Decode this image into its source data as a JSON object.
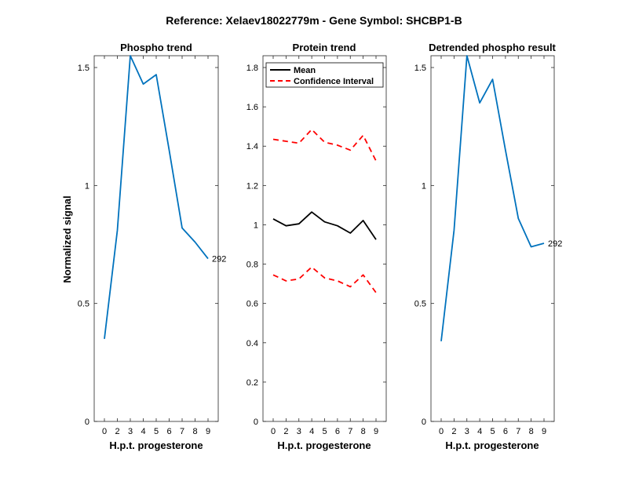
{
  "figure": {
    "title": "Reference:  Xelaev18022779m - Gene Symbol:  SHCBP1-B"
  },
  "chart_data": [
    {
      "type": "line",
      "title": "Phospho trend",
      "xlabel": "H.p.t. progesterone",
      "ylabel": "Normalized signal",
      "x_ticks": [
        "0",
        "2",
        "3",
        "4",
        "5",
        "6",
        "7",
        "8",
        "9"
      ],
      "y_ticks": [
        "0",
        "0.5",
        "1",
        "1.5"
      ],
      "ylim": [
        0,
        1.55
      ],
      "series": [
        {
          "color": "#0072BD",
          "dash": "solid",
          "values": [
            0.35,
            0.81,
            1.55,
            1.43,
            1.47,
            1.15,
            0.82,
            0.76,
            0.69
          ]
        }
      ],
      "annotation": {
        "text": "292",
        "at_index": 8
      }
    },
    {
      "type": "line",
      "title": "Protein trend",
      "xlabel": "H.p.t. progesterone",
      "ylabel": "",
      "x_ticks": [
        "0",
        "2",
        "3",
        "4",
        "5",
        "6",
        "7",
        "8",
        "9"
      ],
      "y_ticks": [
        "0",
        "0.2",
        "0.4",
        "0.6",
        "0.8",
        "1",
        "1.2",
        "1.4",
        "1.6",
        "1.8"
      ],
      "ylim": [
        0,
        1.86
      ],
      "series": [
        {
          "name": "Mean",
          "color": "#000000",
          "dash": "solid",
          "values": [
            1.03,
            0.995,
            1.005,
            1.065,
            1.015,
            0.995,
            0.958,
            1.022,
            0.925
          ]
        },
        {
          "name": "Confidence Interval",
          "color": "#FF0000",
          "dash": "dashed",
          "values": [
            1.435,
            1.425,
            1.415,
            1.485,
            1.42,
            1.405,
            1.38,
            1.455,
            1.325
          ]
        },
        {
          "color": "#FF0000",
          "dash": "dashed",
          "values": [
            0.745,
            0.715,
            0.725,
            0.785,
            0.73,
            0.715,
            0.685,
            0.745,
            0.655
          ]
        }
      ],
      "legend": {
        "placement": "top-right",
        "entries": [
          {
            "label": "Mean",
            "color": "#000000",
            "dash": "solid"
          },
          {
            "label": "Confidence Interval",
            "color": "#FF0000",
            "dash": "dashed"
          }
        ]
      }
    },
    {
      "type": "line",
      "title": "Detrended phospho result",
      "xlabel": "H.p.t. progesterone",
      "ylabel": "",
      "x_ticks": [
        "0",
        "2",
        "3",
        "4",
        "5",
        "6",
        "7",
        "8",
        "9"
      ],
      "y_ticks": [
        "0",
        "0.5",
        "1",
        "1.5"
      ],
      "ylim": [
        0,
        1.55
      ],
      "series": [
        {
          "color": "#0072BD",
          "dash": "solid",
          "values": [
            0.34,
            0.81,
            1.55,
            1.35,
            1.45,
            1.15,
            0.86,
            0.74,
            0.755
          ]
        }
      ],
      "annotation": {
        "text": "292",
        "at_index": 8
      }
    }
  ]
}
